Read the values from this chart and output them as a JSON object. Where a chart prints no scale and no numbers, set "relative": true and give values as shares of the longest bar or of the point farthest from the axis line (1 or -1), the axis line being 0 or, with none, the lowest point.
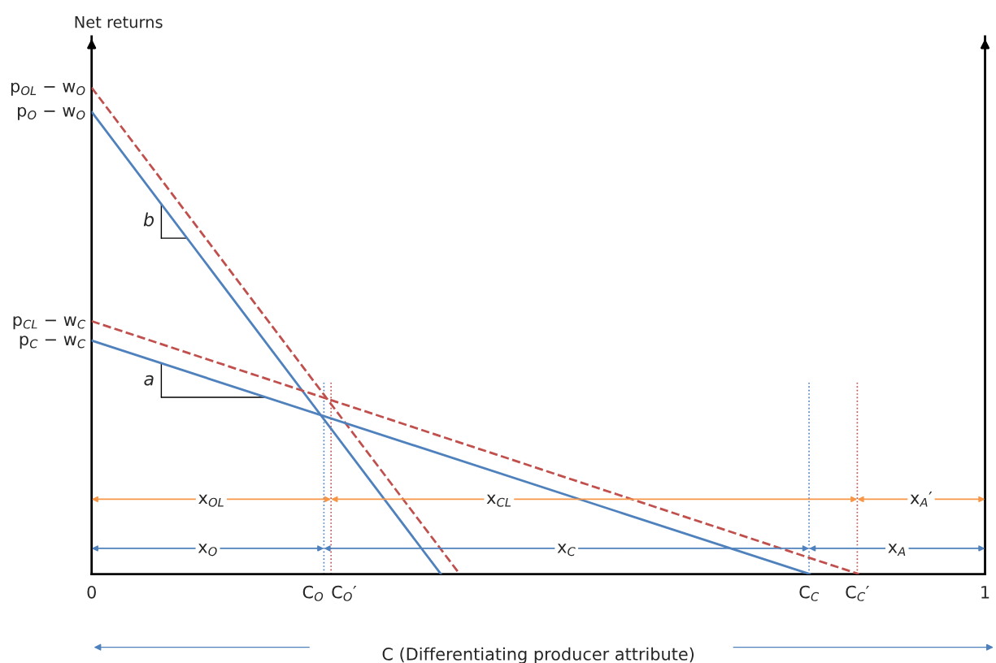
{
  "chart_data": {
    "type": "line",
    "relative": true,
    "xlabel": "C (Differentiating producer attribute)",
    "ylabel": "Net returns",
    "xlim": [
      0,
      1
    ],
    "xticks": [
      0,
      1
    ],
    "series": [
      {
        "color": "#4f81bd",
        "line_style": "solid",
        "x": [
          0,
          0.391
        ],
        "values": [
          0.95,
          0
        ]
      },
      {
        "color": "#c0504d",
        "line_style": "dashed",
        "x": [
          0,
          0.412
        ],
        "values": [
          1,
          0
        ]
      },
      {
        "color": "#4f81bd",
        "line_style": "solid",
        "x": [
          0,
          0.804
        ],
        "values": [
          0.48,
          0
        ]
      },
      {
        "color": "#c0504d",
        "line_style": "dashed",
        "x": [
          0,
          0.859
        ],
        "values": [
          0.52,
          0
        ]
      }
    ],
    "ref_lines": [
      {
        "axis": "x",
        "value": 0.26,
        "label": "C$_{O}$",
        "color": "#4f81bd",
        "line_style": "dotted"
      },
      {
        "axis": "x",
        "value": 0.268,
        "label": "C$_{O}$′",
        "color": "#c0504d",
        "line_style": "dotted"
      },
      {
        "axis": "x",
        "value": 0.803,
        "label": "C$_{C}$",
        "color": "#4f81bd",
        "line_style": "dotted"
      },
      {
        "axis": "x",
        "value": 0.857,
        "label": "C$_{C}$′",
        "color": "#c0504d",
        "line_style": "dotted"
      }
    ],
    "annotations": [
      "p$_{OL}$ − w$_{O}$",
      "p$_{O}$ − w$_{O}$",
      "p$_{CL}$ − w$_{C}$",
      "p$_{C}$ − w$_{C}$",
      "x$_{OL}$",
      "x$_{CL}$",
      "x$_{A}$′",
      "x$_{O}$",
      "x$_{C}$",
      "x$_{A}$",
      "b",
      "a"
    ]
  }
}
